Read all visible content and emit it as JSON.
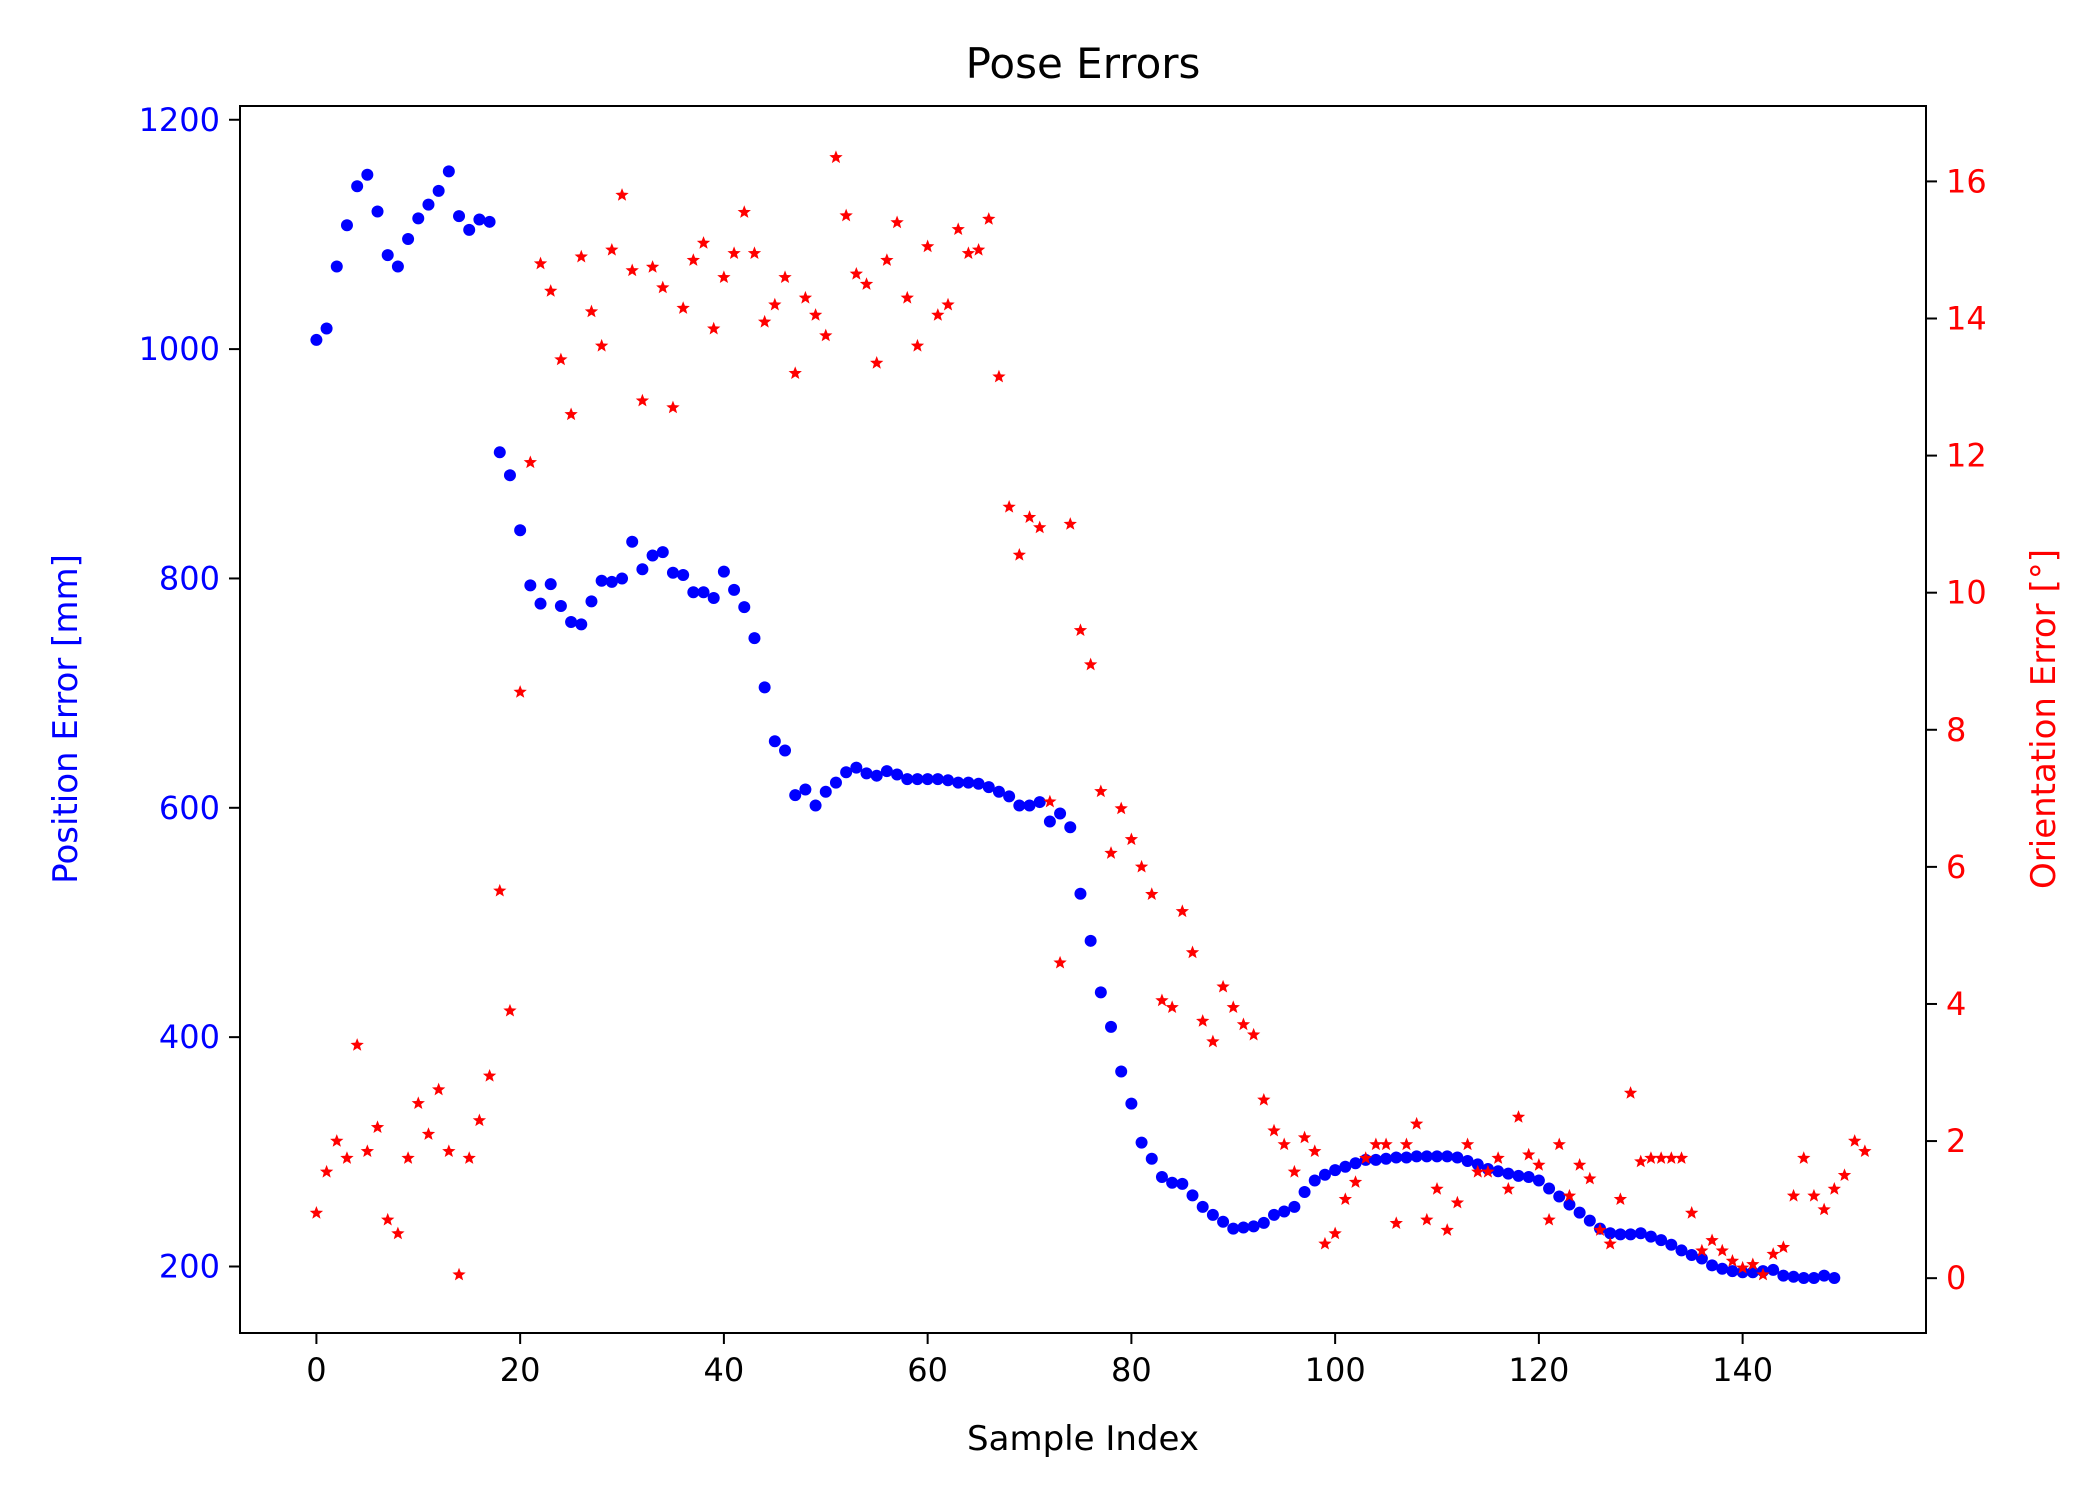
{
  "chart_data": {
    "type": "scatter",
    "title": "Pose Errors",
    "xlabel": "Sample Index",
    "ylabel_left": "Position Error [mm]",
    "ylabel_right": "Orientation Error [°]",
    "xlim": [
      -7.5,
      158
    ],
    "ylim_left": [
      142,
      1212
    ],
    "ylim_right": [
      -0.8,
      17.1
    ],
    "x_ticks": [
      "0",
      "20",
      "40",
      "60",
      "80",
      "100",
      "120",
      "140"
    ],
    "y_left_ticks": [
      "200",
      "400",
      "600",
      "800",
      "1000",
      "1200"
    ],
    "y_right_ticks": [
      "0",
      "2",
      "4",
      "6",
      "8",
      "10",
      "12",
      "14",
      "16"
    ],
    "grid": false,
    "legend": "none",
    "colors": {
      "position": "#0000ff",
      "orientation": "#ff0000"
    },
    "series": [
      {
        "axis": "left",
        "marker": "circle",
        "color": "#0000ff",
        "x_start": 0,
        "x_step": 1,
        "values": [
          1008,
          1018,
          1072,
          1108,
          1142,
          1152,
          1120,
          1082,
          1072,
          1096,
          1114,
          1126,
          1138,
          1155,
          1116,
          1104,
          1113,
          1111,
          910,
          890,
          842,
          794,
          778,
          795,
          776,
          762,
          760,
          780,
          798,
          797,
          800,
          832,
          808,
          820,
          823,
          805,
          803,
          788,
          788,
          783,
          806,
          790,
          775,
          748,
          705,
          658,
          650,
          611,
          616,
          602,
          614,
          622,
          631,
          635,
          630,
          628,
          632,
          629,
          625,
          625,
          625,
          625,
          624,
          622,
          622,
          621,
          618,
          614,
          610,
          602,
          602,
          605,
          588,
          595,
          583,
          525,
          484,
          439,
          409,
          370,
          342,
          308,
          294,
          278,
          273,
          272,
          262,
          252,
          245,
          239,
          233,
          234,
          235,
          238,
          245,
          248,
          252,
          265,
          275,
          280,
          284,
          287,
          290,
          293,
          293,
          294,
          295,
          295,
          296,
          296,
          296,
          296,
          295,
          292,
          289,
          285,
          283,
          281,
          279,
          278,
          275,
          268,
          261,
          254,
          247,
          240,
          233,
          229,
          228,
          228,
          229,
          226,
          223,
          219,
          214,
          210,
          207,
          201,
          198,
          196,
          195,
          195,
          196,
          197,
          192,
          191,
          190,
          190,
          192,
          190
        ]
      },
      {
        "axis": "right",
        "marker": "star",
        "color": "#ff0000",
        "x_start": 0,
        "x_step": 1,
        "values": [
          0.95,
          1.55,
          2.0,
          1.75,
          3.4,
          1.85,
          2.2,
          0.85,
          0.65,
          1.75,
          2.55,
          2.1,
          2.75,
          1.85,
          0.05,
          1.75,
          2.3,
          2.95,
          5.65,
          3.9,
          8.55,
          11.9,
          14.8,
          14.4,
          13.4,
          12.6,
          14.9,
          14.1,
          13.6,
          15.0,
          15.8,
          14.7,
          12.8,
          14.75,
          14.45,
          12.7,
          14.15,
          14.85,
          15.1,
          13.85,
          14.6,
          14.95,
          15.55,
          14.95,
          13.95,
          14.2,
          14.6,
          13.2,
          14.3,
          14.05,
          13.75,
          16.35,
          15.5,
          14.65,
          14.5,
          13.35,
          14.85,
          15.4,
          14.3,
          13.6,
          15.05,
          14.05,
          14.2,
          15.3,
          14.95,
          15.0,
          15.45,
          13.15,
          11.25,
          10.55,
          11.1,
          10.95,
          6.95,
          4.6,
          11.0,
          9.45,
          8.95,
          7.1,
          6.2,
          6.85,
          6.4,
          6.0,
          5.6,
          4.05,
          3.95,
          5.35,
          4.75,
          3.75,
          3.45,
          4.25,
          3.95,
          3.7,
          3.55,
          2.6,
          2.15,
          1.95,
          1.55,
          2.05,
          1.85,
          0.5,
          0.65,
          1.15,
          1.4,
          1.75,
          1.95,
          1.95,
          0.8,
          1.95,
          2.25,
          0.85,
          1.3,
          0.7,
          1.1,
          1.95,
          1.55,
          1.55,
          1.75,
          1.3,
          2.35,
          1.8,
          1.65,
          0.85,
          1.95,
          1.2,
          1.65,
          1.45,
          0.7,
          0.5,
          1.15,
          2.7,
          1.7,
          1.75,
          1.75,
          1.75,
          1.75,
          0.95,
          0.4,
          0.55,
          0.4,
          0.25,
          0.15,
          0.2,
          0.05,
          0.35,
          0.45,
          1.2,
          1.75,
          1.2,
          1.0,
          1.3,
          1.5,
          2.0,
          1.85
        ]
      }
    ]
  }
}
